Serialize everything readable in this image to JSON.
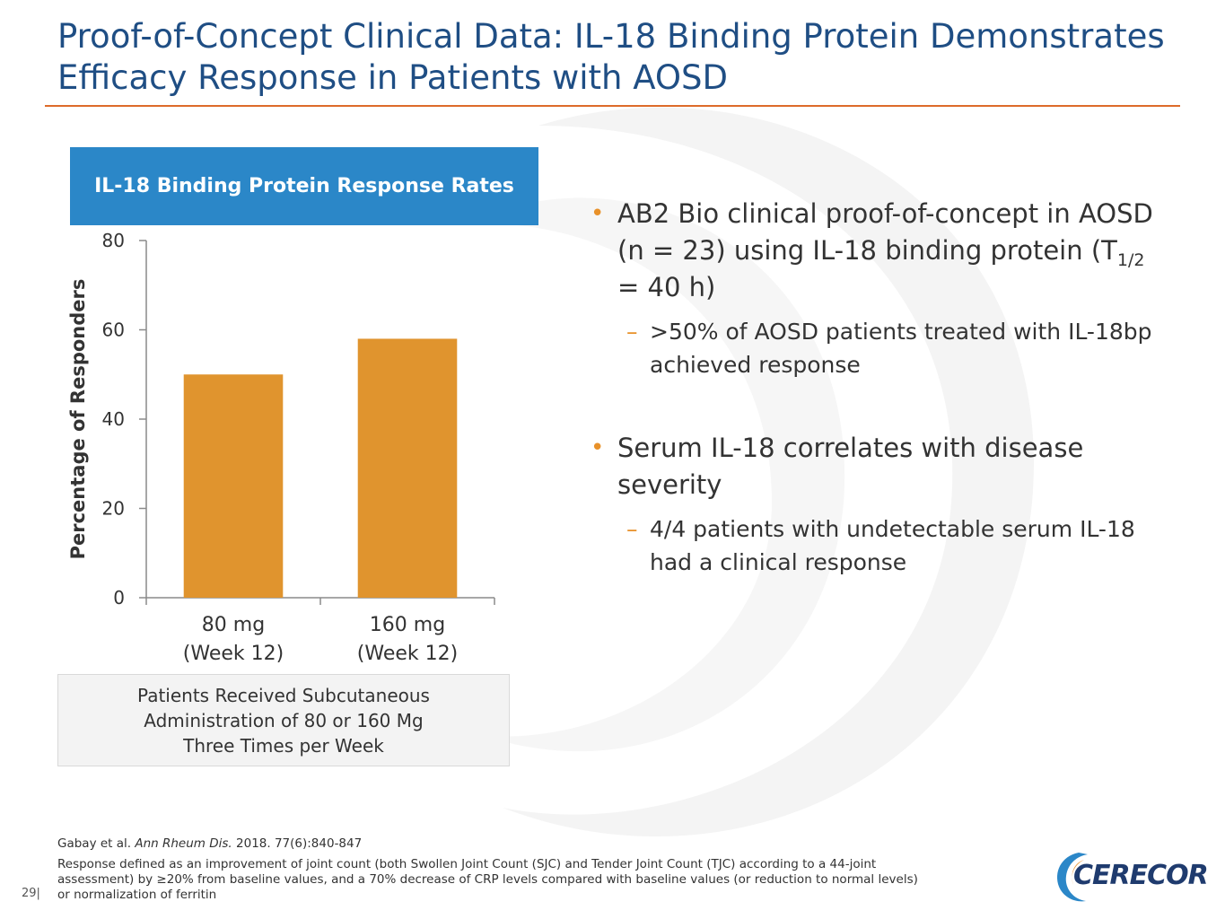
{
  "slide": {
    "title_line1": "Proof-of-Concept Clinical Data: IL-18 Binding Protein Demonstrates",
    "title_line2": "Efficacy Response in Patients with AOSD",
    "page_number": "29|"
  },
  "chart_data": {
    "type": "bar",
    "title": "IL-18 Binding Protein Response Rates",
    "categories": [
      [
        "80 mg",
        "(Week 12)"
      ],
      [
        "160 mg",
        "(Week 12)"
      ]
    ],
    "values": [
      50,
      58
    ],
    "ylabel": "Percentage of Responders",
    "xlabel": "",
    "ylim": [
      0,
      80
    ],
    "yticks": [
      0,
      20,
      40,
      60,
      80
    ],
    "bar_color": "#e0942e",
    "grid": false
  },
  "note_box": {
    "line1": "Patients Received Subcutaneous",
    "line2": "Administration of 80 or 160 Mg",
    "line3": "Three Times per Week"
  },
  "bullets": {
    "b1_pre": "AB2 Bio clinical proof-of-concept in AOSD (n = 23) using IL-18 binding protein (T",
    "b1_sub": "1/2",
    "b1_post": " = 40 h)",
    "b1_sub1": ">50% of AOSD patients treated with IL-18bp achieved response",
    "b2": "Serum IL-18 correlates with disease severity",
    "b2_sub1": "4/4 patients with undetectable serum IL-18 had a clinical response",
    "bullet_glyph": "•",
    "dash_glyph": "–"
  },
  "footnotes": {
    "citation_authors": "Gabay et al. ",
    "citation_journal": "Ann Rheum Dis.",
    "citation_rest": " 2018. 77(6):840-847",
    "definition": "Response defined as an improvement of joint count (both Swollen Joint Count (SJC) and Tender Joint Count (TJC) according to a 44-joint assessment) by ≥20% from baseline values, and a 70% decrease of CRP levels compared with baseline values (or reduction to normal levels) or normalization of ferritin"
  },
  "logo": {
    "text": "CERECOR",
    "color": "#1f3b6e",
    "accent": "#2b87c8"
  },
  "colors": {
    "title": "#1f4e84",
    "rule": "#dd6b2a",
    "header_bg": "#2b87c8",
    "accent": "#e8912a"
  }
}
